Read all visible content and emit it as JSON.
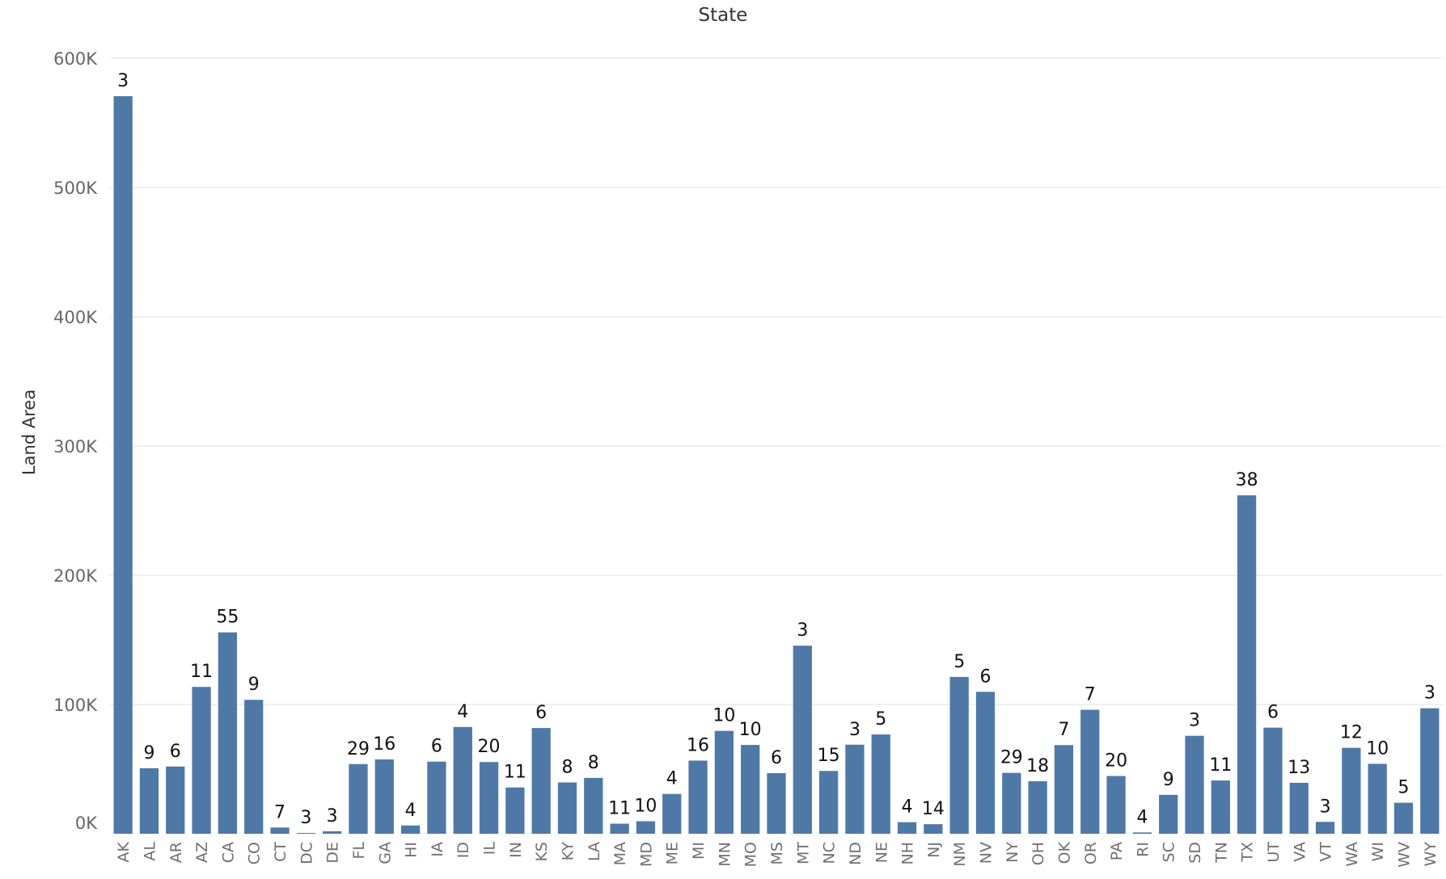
{
  "chart_data": {
    "type": "bar",
    "title": "State",
    "xlabel": "",
    "ylabel": "Land Area",
    "ylim": [
      0,
      600000
    ],
    "yticks": [
      0,
      100000,
      200000,
      300000,
      400000,
      500000,
      600000
    ],
    "ytick_labels": [
      "0K",
      "100K",
      "200K",
      "300K",
      "400K",
      "500K",
      "600K"
    ],
    "grid": true,
    "legend": "none",
    "bar_color": "#4e79a7",
    "categories": [
      "AK",
      "AL",
      "AR",
      "AZ",
      "CA",
      "CO",
      "CT",
      "DC",
      "DE",
      "FL",
      "GA",
      "HI",
      "IA",
      "ID",
      "IL",
      "IN",
      "KS",
      "KY",
      "LA",
      "MA",
      "MD",
      "ME",
      "MI",
      "MN",
      "MO",
      "MS",
      "MT",
      "NC",
      "ND",
      "NE",
      "NH",
      "NJ",
      "NM",
      "NV",
      "NY",
      "OH",
      "OK",
      "OR",
      "PA",
      "RI",
      "SC",
      "SD",
      "TN",
      "TX",
      "UT",
      "VA",
      "VT",
      "WA",
      "WI",
      "WV",
      "WY"
    ],
    "values": [
      570600,
      50700,
      52000,
      113600,
      155800,
      103600,
      4800,
      60,
      1950,
      53900,
      57500,
      6400,
      55800,
      82600,
      55500,
      35800,
      81800,
      39700,
      43200,
      7800,
      9700,
      30800,
      56600,
      79600,
      68700,
      46900,
      145500,
      48600,
      68900,
      76800,
      8950,
      7400,
      121300,
      109800,
      47100,
      40600,
      68600,
      95900,
      44700,
      1030,
      30100,
      75800,
      41200,
      261800,
      82100,
      39400,
      9200,
      66500,
      54100,
      24000,
      97100
    ],
    "data_labels": [
      "3",
      "9",
      "6",
      "11",
      "55",
      "9",
      "7",
      "3",
      "3",
      "29",
      "16",
      "4",
      "6",
      "4",
      "20",
      "11",
      "6",
      "8",
      "8",
      "11",
      "10",
      "4",
      "16",
      "10",
      "10",
      "6",
      "3",
      "15",
      "3",
      "5",
      "4",
      "14",
      "5",
      "6",
      "29",
      "18",
      "7",
      "7",
      "20",
      "4",
      "9",
      "3",
      "11",
      "38",
      "6",
      "13",
      "3",
      "12",
      "10",
      "5",
      "3"
    ]
  }
}
